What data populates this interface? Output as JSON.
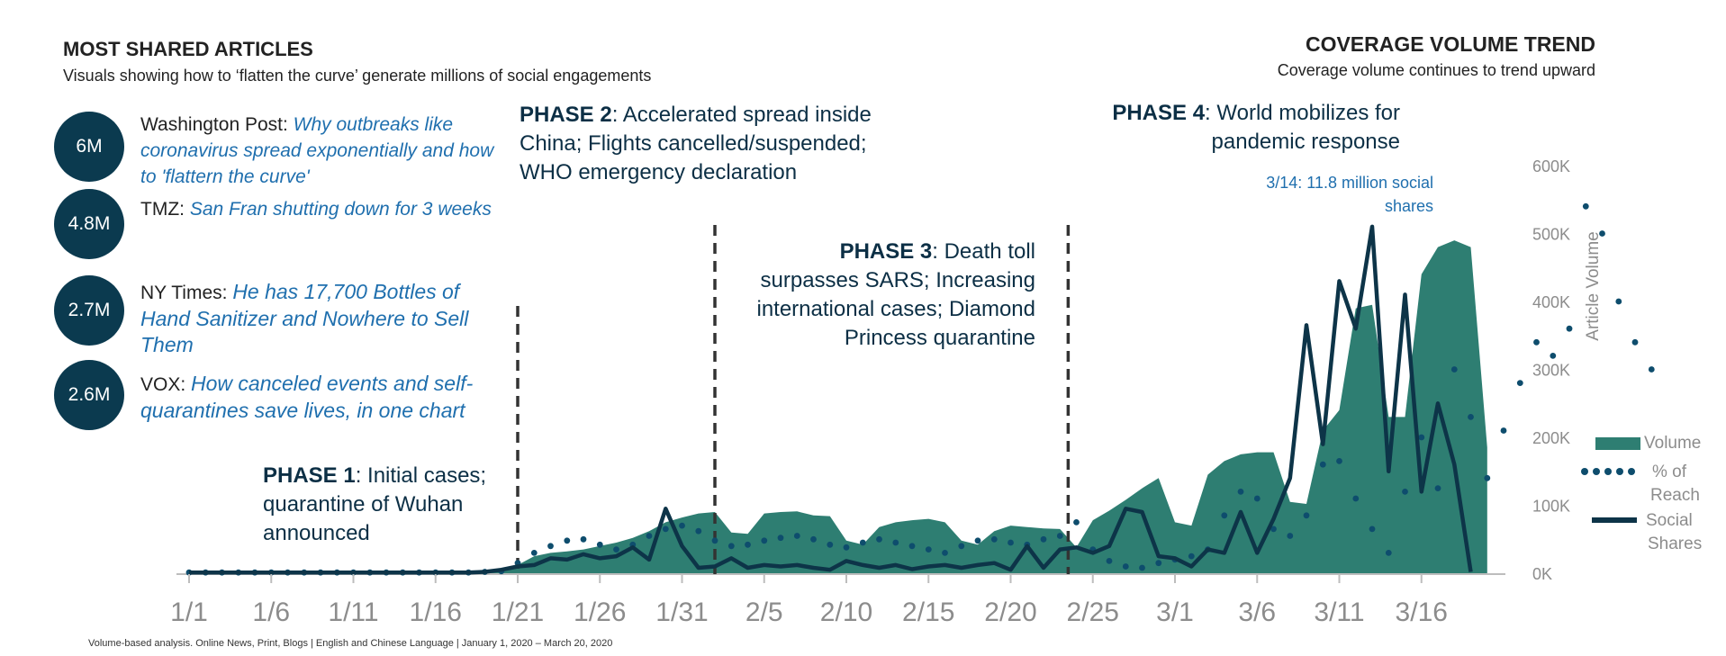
{
  "left_header": {
    "title": "MOST SHARED ARTICLES",
    "subtitle": "Visuals showing how to ‘flatten the curve’ generate millions of social engagements"
  },
  "right_header": {
    "title": "COVERAGE VOLUME TREND",
    "subtitle": "Coverage volume continues to trend upward"
  },
  "articles": [
    {
      "count": "6M",
      "outlet": "Washington Post: ",
      "headline": "Why outbreaks like coronavirus spread exponentially and how to 'flattern the curve'"
    },
    {
      "count": "4.8M",
      "outlet": "TMZ: ",
      "headline": "San Fran shutting down for 3 weeks"
    },
    {
      "count": "2.7M",
      "outlet": "NY Times: ",
      "headline": "He has 17,700 Bottles of Hand Sanitizer and Nowhere to Sell Them"
    },
    {
      "count": "2.6M",
      "outlet": "VOX: ",
      "headline": "How canceled events and self-quarantines save lives, in one chart"
    }
  ],
  "phases": [
    {
      "label": "PHASE 1",
      "text": ": Initial cases; quarantine of Wuhan announced"
    },
    {
      "label": "PHASE 2",
      "text": ": Accelerated spread inside China; Flights cancelled/suspended; WHO emergency declaration"
    },
    {
      "label": "PHASE 3",
      "text": ": Death toll surpasses SARS; Increasing international cases; Diamond Princess quarantine"
    },
    {
      "label": "PHASE 4",
      "text": ": World mobilizes for pandemic response"
    }
  ],
  "callout": "3/14: 11.8 million social shares",
  "footnote": "Volume-based analysis. Online News, Print, Blogs | English and Chinese Language | January 1, 2020 – March 20, 2020",
  "colors": {
    "volume": "#2e7e72",
    "reach": "#0e4d6d",
    "shares": "#0d3448",
    "circle": "#0b3a4f",
    "headline": "#1f6fae"
  },
  "chart_data": {
    "type": "area",
    "title": "COVERAGE VOLUME TREND",
    "ylabel": "Article Volume",
    "ylim": [
      0,
      600000
    ],
    "yticks": [
      "0K",
      "100K",
      "200K",
      "300K",
      "400K",
      "500K",
      "600K"
    ],
    "x_tick_labels": [
      "1/1",
      "1/6",
      "1/11",
      "1/16",
      "1/21",
      "1/26",
      "1/31",
      "2/5",
      "2/10",
      "2/15",
      "2/20",
      "2/25",
      "3/1",
      "3/6",
      "3/11",
      "3/16"
    ],
    "x_start": "1/1",
    "x_end": "3/20",
    "phase_boundaries_day_index": [
      20,
      32,
      53.5
    ],
    "legend": [
      "Volume",
      "% of Reach",
      "Social Shares"
    ],
    "series": [
      {
        "name": "Volume",
        "kind": "area",
        "values": [
          2000,
          2000,
          2000,
          2000,
          2000,
          2000,
          2000,
          2000,
          2000,
          2000,
          2000,
          2000,
          2000,
          2000,
          2000,
          2000,
          2000,
          2000,
          3000,
          5000,
          12000,
          25000,
          30000,
          32000,
          35000,
          40000,
          45000,
          52000,
          62000,
          75000,
          82000,
          88000,
          90000,
          60000,
          58000,
          88000,
          90000,
          91000,
          85000,
          84000,
          48000,
          42000,
          68000,
          75000,
          78000,
          80000,
          75000,
          48000,
          42000,
          62000,
          70000,
          68000,
          66000,
          65000,
          38000,
          78000,
          92000,
          108000,
          125000,
          140000,
          75000,
          70000,
          145000,
          165000,
          175000,
          178000,
          178000,
          105000,
          102000,
          210000,
          240000,
          390000,
          395000,
          230000,
          230000,
          440000,
          480000,
          490000,
          480000,
          185000
        ]
      },
      {
        "name": "% of Reach",
        "kind": "dotted",
        "values": [
          1000,
          1000,
          1000,
          1000,
          1000,
          1000,
          1000,
          1000,
          1000,
          1000,
          1000,
          1000,
          1000,
          1000,
          1000,
          1000,
          1000,
          1000,
          2000,
          3000,
          15000,
          30000,
          40000,
          48000,
          50000,
          42000,
          35000,
          42000,
          55000,
          65000,
          70000,
          62000,
          48000,
          40000,
          42000,
          48000,
          52000,
          55000,
          50000,
          42000,
          38000,
          45000,
          50000,
          45000,
          40000,
          35000,
          30000,
          40000,
          48000,
          50000,
          45000,
          42000,
          50000,
          55000,
          75000,
          35000,
          18000,
          10000,
          8000,
          15000,
          20000,
          25000,
          35000,
          85000,
          120000,
          110000,
          65000,
          55000,
          85000,
          160000,
          165000,
          110000,
          65000,
          30000,
          120000,
          200000,
          125000,
          300000,
          230000,
          140000,
          210000,
          280000,
          340000,
          320000,
          360000,
          540000,
          500000,
          400000,
          340000,
          300000
        ]
      },
      {
        "name": "Social Shares",
        "kind": "line",
        "values": [
          1000,
          1000,
          1000,
          1000,
          1000,
          1000,
          1000,
          1000,
          1000,
          1000,
          1000,
          1000,
          1000,
          1000,
          1000,
          1000,
          1000,
          1000,
          2000,
          5000,
          10000,
          12000,
          22000,
          20000,
          28000,
          22000,
          25000,
          38000,
          20000,
          95000,
          40000,
          8000,
          10000,
          22000,
          8000,
          12000,
          10000,
          12000,
          8000,
          5000,
          18000,
          12000,
          8000,
          12000,
          6000,
          10000,
          12000,
          8000,
          12000,
          15000,
          5000,
          40000,
          8000,
          35000,
          38000,
          30000,
          40000,
          95000,
          90000,
          25000,
          22000,
          10000,
          35000,
          30000,
          90000,
          30000,
          80000,
          140000,
          365000,
          190000,
          430000,
          360000,
          510000,
          150000,
          410000,
          120000,
          250000,
          160000,
          2000
        ]
      }
    ]
  }
}
